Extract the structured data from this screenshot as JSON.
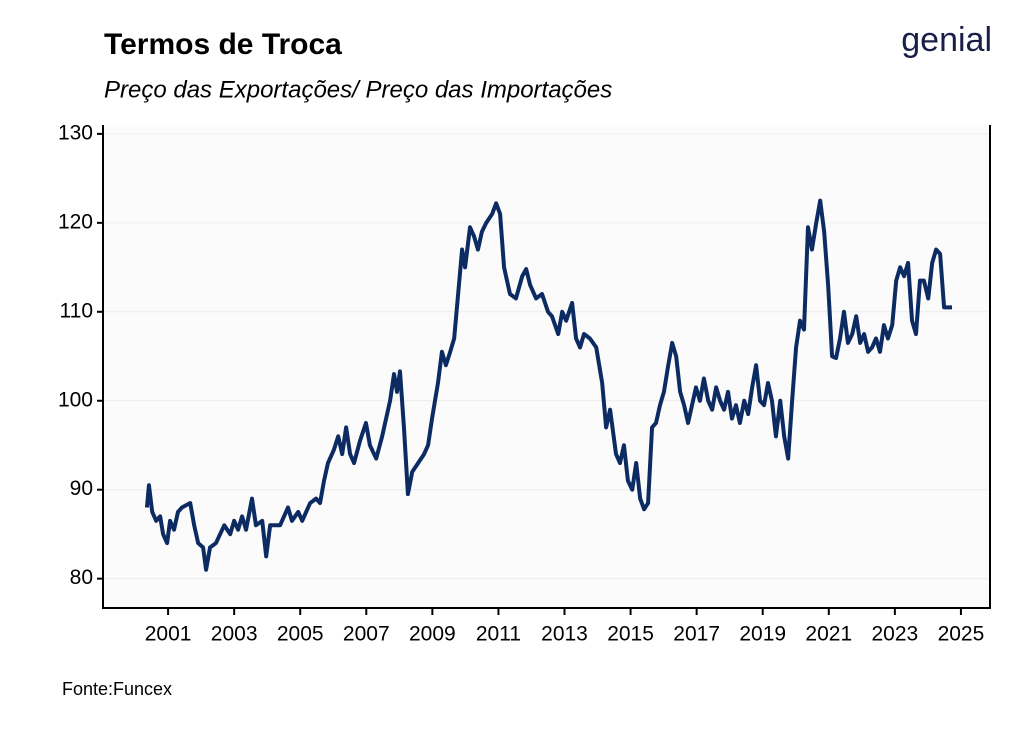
{
  "chart_data": {
    "type": "line",
    "title": "Termos de Troca",
    "subtitle": "Preço das Exportações/ Preço das Importações",
    "source": "Fonte:Funcex",
    "brand": "genial",
    "grid": true,
    "xlim": [
      1999.03,
      2025.88
    ],
    "xticks": [
      2001,
      2003,
      2005,
      2007,
      2009,
      2011,
      2013,
      2015,
      2017,
      2019,
      2021,
      2023,
      2025
    ],
    "ylim": [
      76.7,
      131
    ],
    "yticks": [
      80,
      90,
      100,
      110,
      120,
      130
    ],
    "x": [
      2000.36,
      2000.42,
      2000.52,
      2000.64,
      2000.76,
      2000.85,
      2000.97,
      2001.06,
      2001.18,
      2001.3,
      2001.42,
      2001.67,
      2001.79,
      2001.91,
      2002.06,
      2002.15,
      2002.27,
      2002.45,
      2002.7,
      2002.88,
      2003.0,
      2003.12,
      2003.24,
      2003.36,
      2003.54,
      2003.66,
      2003.85,
      2003.97,
      2004.09,
      2004.39,
      2004.63,
      2004.75,
      2004.94,
      2005.06,
      2005.3,
      2005.48,
      2005.6,
      2005.72,
      2005.84,
      2006.02,
      2006.15,
      2006.27,
      2006.39,
      2006.51,
      2006.63,
      2006.81,
      2006.99,
      2007.11,
      2007.3,
      2007.48,
      2007.72,
      2007.84,
      2007.93,
      2008.02,
      2008.14,
      2008.26,
      2008.39,
      2008.57,
      2008.75,
      2008.87,
      2008.99,
      2009.17,
      2009.29,
      2009.41,
      2009.54,
      2009.66,
      2009.78,
      2009.9,
      2009.99,
      2010.14,
      2010.26,
      2010.38,
      2010.5,
      2010.63,
      2010.81,
      2010.93,
      2011.05,
      2011.17,
      2011.35,
      2011.53,
      2011.72,
      2011.84,
      2011.96,
      2012.14,
      2012.32,
      2012.5,
      2012.62,
      2012.81,
      2012.93,
      2013.05,
      2013.23,
      2013.35,
      2013.47,
      2013.59,
      2013.77,
      2013.96,
      2014.14,
      2014.26,
      2014.38,
      2014.56,
      2014.68,
      2014.8,
      2014.92,
      2015.05,
      2015.17,
      2015.29,
      2015.41,
      2015.53,
      2015.65,
      2015.77,
      2015.89,
      2016.01,
      2016.14,
      2016.26,
      2016.38,
      2016.5,
      2016.62,
      2016.74,
      2016.86,
      2016.98,
      2017.1,
      2017.22,
      2017.35,
      2017.47,
      2017.59,
      2017.71,
      2017.83,
      2017.95,
      2018.07,
      2018.19,
      2018.31,
      2018.44,
      2018.56,
      2018.68,
      2018.8,
      2018.92,
      2019.04,
      2019.16,
      2019.28,
      2019.4,
      2019.53,
      2019.65,
      2019.77,
      2019.89,
      2020.01,
      2020.13,
      2020.25,
      2020.37,
      2020.49,
      2020.62,
      2020.74,
      2020.86,
      2020.98,
      2021.1,
      2021.22,
      2021.34,
      2021.46,
      2021.58,
      2021.71,
      2021.83,
      2021.95,
      2022.07,
      2022.19,
      2022.31,
      2022.43,
      2022.55,
      2022.67,
      2022.79,
      2022.92,
      2023.04,
      2023.16,
      2023.28,
      2023.4,
      2023.52,
      2023.64,
      2023.76,
      2023.88,
      2024.01,
      2024.13,
      2024.25,
      2024.37,
      2024.49,
      2024.61,
      2024.73
    ],
    "series": [
      {
        "name": "Termos de Troca",
        "color": "#0d2b63",
        "values": [
          88,
          90.5,
          87.5,
          86.5,
          87,
          85,
          84,
          86.5,
          85.5,
          87.5,
          88,
          88.5,
          86,
          84,
          83.5,
          81,
          83.5,
          84,
          86,
          85,
          86.5,
          85.5,
          87,
          85.5,
          89,
          86,
          86.5,
          82.5,
          86,
          86,
          88,
          86.5,
          87.5,
          86.5,
          88.5,
          89,
          88.5,
          91,
          93,
          94.5,
          96,
          94,
          97,
          94,
          93,
          95.5,
          97.5,
          95,
          93.5,
          96,
          100,
          103,
          101,
          103.3,
          97,
          89.5,
          92,
          93,
          94,
          95,
          98,
          102,
          105.5,
          104,
          105.5,
          107,
          112,
          117,
          115,
          119.5,
          118.5,
          117,
          119,
          120,
          121,
          122.2,
          121,
          115,
          112,
          111.5,
          114,
          114.8,
          113,
          111.5,
          112,
          110,
          109.5,
          107.5,
          110,
          109,
          111,
          107,
          106,
          107.5,
          107,
          106,
          102,
          97,
          99,
          94,
          93,
          95,
          91,
          90,
          93,
          89,
          87.8,
          88.5,
          97,
          97.5,
          99.5,
          101,
          104,
          106.5,
          105,
          101,
          99.5,
          97.5,
          99.5,
          101.5,
          100,
          102.5,
          100,
          99,
          101.5,
          100,
          99,
          101,
          98,
          99.5,
          97.5,
          100,
          98.5,
          101.5,
          104,
          100,
          99.5,
          102,
          100,
          96,
          100,
          96,
          93.5,
          100,
          106,
          109,
          108,
          119.5,
          117,
          120,
          122.5,
          119,
          113,
          105,
          104.8,
          107,
          110,
          106.5,
          107.5,
          109.5,
          106.5,
          107.5,
          105.5,
          106,
          107,
          105.5,
          108.5,
          107,
          108.5,
          113.5,
          115,
          114,
          115.5,
          109,
          107.5,
          113.5,
          113.5,
          111.5,
          115.5,
          117,
          116.5,
          110.5,
          110.5,
          110.5
        ]
      }
    ]
  }
}
